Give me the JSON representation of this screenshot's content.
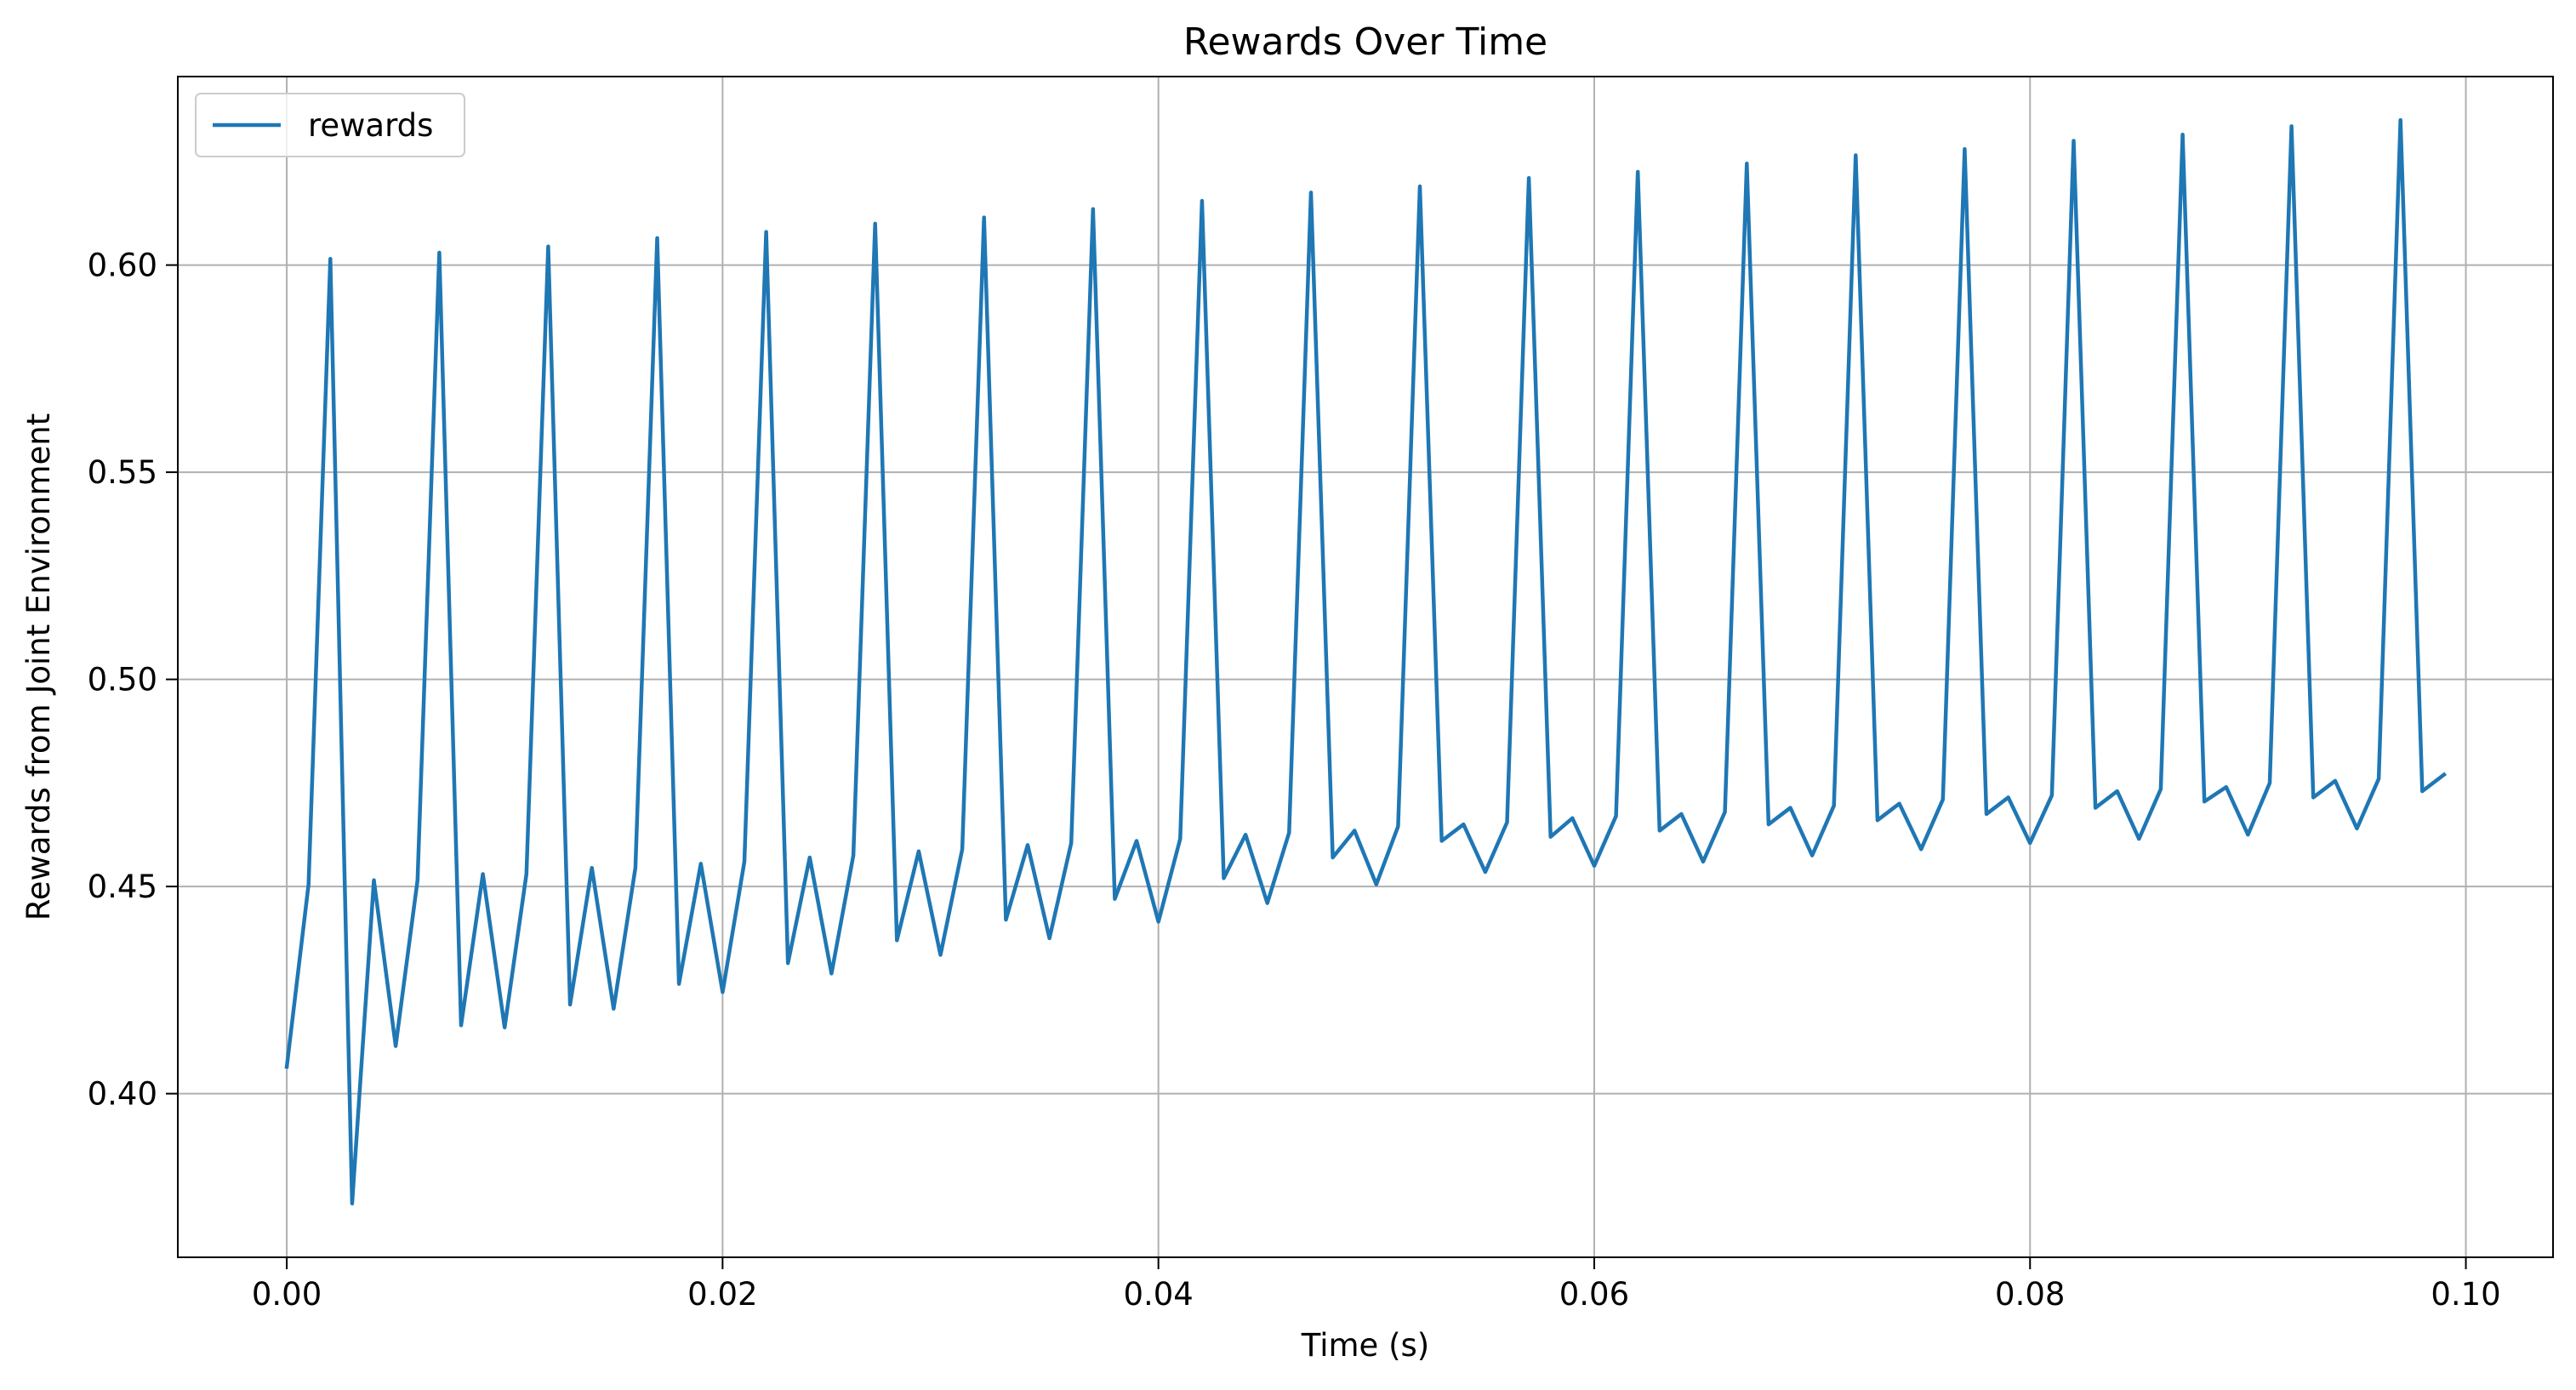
{
  "chart_data": {
    "type": "line",
    "title": "Rewards Over Time",
    "xlabel": "Time (s)",
    "ylabel": "Rewards from Joint Environment",
    "xlim": [
      -0.005,
      0.104
    ],
    "ylim": [
      0.3605,
      0.6455
    ],
    "xticks": [
      0.0,
      0.02,
      0.04,
      0.06,
      0.08,
      0.1
    ],
    "xtick_labels": [
      "0.00",
      "0.02",
      "0.04",
      "0.06",
      "0.08",
      "0.10"
    ],
    "yticks": [
      0.4,
      0.45,
      0.5,
      0.55,
      0.6
    ],
    "ytick_labels": [
      "0.40",
      "0.45",
      "0.50",
      "0.55",
      "0.60"
    ],
    "grid": true,
    "legend_position": "upper-left",
    "series": [
      {
        "name": "rewards",
        "color": "#1f77b4",
        "x": [
          0.0,
          0.001,
          0.002,
          0.003,
          0.004,
          0.005,
          0.006,
          0.007,
          0.008,
          0.009,
          0.01,
          0.011,
          0.012,
          0.013,
          0.014,
          0.015,
          0.016,
          0.017,
          0.018,
          0.019,
          0.02,
          0.021,
          0.022,
          0.023,
          0.024,
          0.025,
          0.026,
          0.027,
          0.028,
          0.029,
          0.03,
          0.031,
          0.032,
          0.033,
          0.034,
          0.035,
          0.036,
          0.037,
          0.038,
          0.039,
          0.04,
          0.041,
          0.042,
          0.043,
          0.044,
          0.045,
          0.046,
          0.047,
          0.048,
          0.049,
          0.05,
          0.051,
          0.052,
          0.053,
          0.054,
          0.055,
          0.056,
          0.057,
          0.058,
          0.059,
          0.06,
          0.061,
          0.062,
          0.063,
          0.064,
          0.065,
          0.066,
          0.067,
          0.068,
          0.069,
          0.07,
          0.071,
          0.072,
          0.073,
          0.074,
          0.075,
          0.076,
          0.077,
          0.078,
          0.079,
          0.08,
          0.081,
          0.082,
          0.083,
          0.084,
          0.085,
          0.086,
          0.087,
          0.088,
          0.089,
          0.09,
          0.091,
          0.092,
          0.093,
          0.094,
          0.095,
          0.096,
          0.097,
          0.098,
          0.099
        ],
        "values": [
          0.4065,
          0.4505,
          0.6015,
          0.3735,
          0.4515,
          0.4115,
          0.4515,
          0.603,
          0.4165,
          0.453,
          0.416,
          0.453,
          0.6045,
          0.4215,
          0.4545,
          0.4205,
          0.4545,
          0.6065,
          0.4265,
          0.4555,
          0.4245,
          0.456,
          0.608,
          0.4315,
          0.457,
          0.429,
          0.4575,
          0.61,
          0.437,
          0.4585,
          0.4335,
          0.459,
          0.6115,
          0.442,
          0.46,
          0.4375,
          0.4605,
          0.6135,
          0.447,
          0.461,
          0.4415,
          0.4615,
          0.6155,
          0.452,
          0.4625,
          0.446,
          0.463,
          0.6175,
          0.457,
          0.4635,
          0.4505,
          0.4645,
          0.619,
          0.461,
          0.465,
          0.4535,
          0.4655,
          0.621,
          0.462,
          0.4665,
          0.455,
          0.467,
          0.6225,
          0.4635,
          0.4675,
          0.456,
          0.468,
          0.6245,
          0.465,
          0.469,
          0.4575,
          0.4695,
          0.6265,
          0.466,
          0.47,
          0.459,
          0.471,
          0.628,
          0.4675,
          0.4715,
          0.4605,
          0.472,
          0.63,
          0.469,
          0.473,
          0.4615,
          0.4735,
          0.6315,
          0.4705,
          0.474,
          0.4625,
          0.475,
          0.6335,
          0.4715,
          0.4755,
          0.464,
          0.476,
          0.635,
          0.473,
          0.477
        ]
      }
    ]
  }
}
